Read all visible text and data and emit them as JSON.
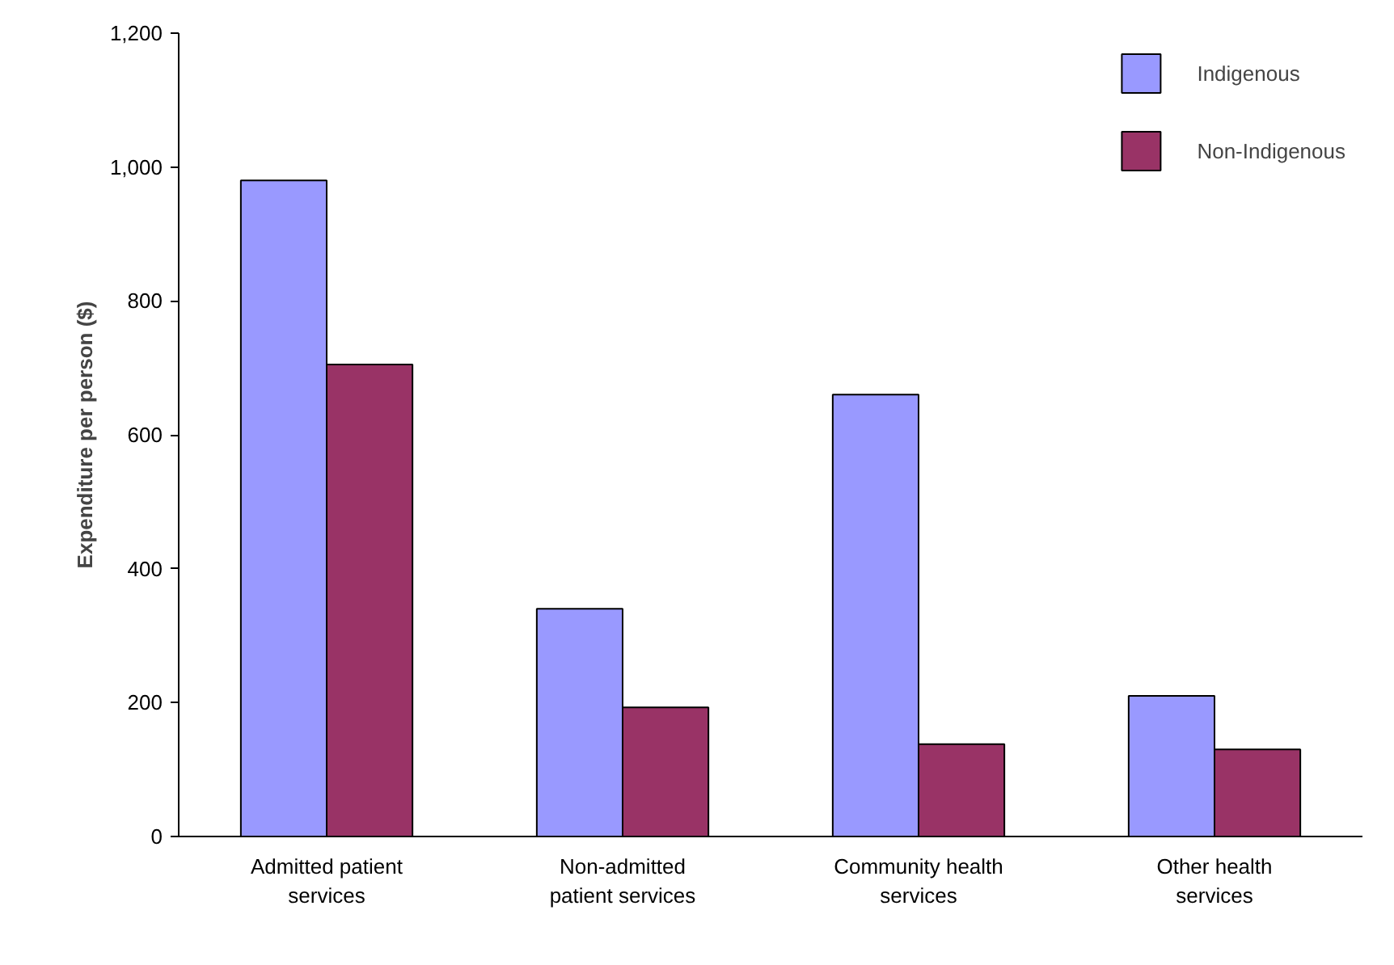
{
  "chart_data": {
    "type": "bar",
    "ylabel": "Expenditure per person ($)",
    "categories": [
      "Admitted patient services",
      "Non-admitted patient services",
      "Community health services",
      "Other health services"
    ],
    "series": [
      {
        "name": "Indigenous",
        "color": "#9999ff",
        "values": [
          980,
          340,
          660,
          210
        ]
      },
      {
        "name": "Non-Indigenous",
        "color": "#993366",
        "values": [
          705,
          193,
          138,
          130
        ]
      }
    ],
    "ylim": [
      0,
      1200
    ],
    "yticks": [
      0,
      200,
      400,
      600,
      800,
      {
        "value": 1000,
        "label": "1,000"
      },
      {
        "value": 1200,
        "label": "1,200"
      }
    ],
    "grid": false,
    "legend": "top right"
  }
}
